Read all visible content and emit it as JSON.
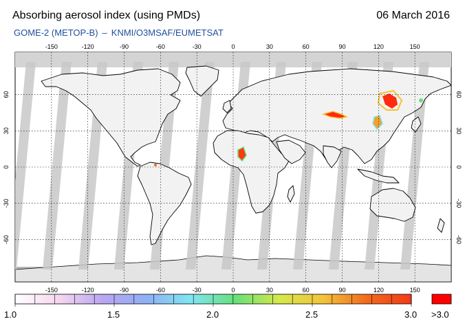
{
  "header": {
    "title": "Absorbing aerosol index (using PMDs)",
    "date": "06 March 2016",
    "instrument": "GOME-2 (METOP-B)",
    "separator": "–",
    "provider": "KNMI/O3MSAF/EUMETSAT"
  },
  "map": {
    "projection": "equirectangular",
    "lon_ticks": [
      "-150",
      "-120",
      "-90",
      "-60",
      "-30",
      "0",
      "30",
      "60",
      "90",
      "120",
      "150"
    ],
    "lat_ticks": [
      "60",
      "30",
      "0",
      "-30",
      "-60"
    ],
    "colors": {
      "ocean": "#ffffff",
      "no_data_swath_gap": "#c8c8c8",
      "polar_no_data": "#d4d4d4",
      "coastline": "#000000",
      "grid": "#000000"
    },
    "aerosol_hotspots": [
      {
        "region": "North-East China / Mongolia",
        "level": ">3.0"
      },
      {
        "region": "Central Asia / Kazakhstan",
        "level": ">3.0"
      },
      {
        "region": "Central Africa",
        "level": ">3.0"
      },
      {
        "region": "Eastern China",
        "level": "2.5-3.0"
      }
    ]
  },
  "colorbar": {
    "labels": [
      "1.0",
      "1.5",
      "2.0",
      "2.5",
      "3.0"
    ],
    "overflow_label": ">3.0",
    "stops": [
      "#ffffff",
      "#f6d6ef",
      "#b9a6f0",
      "#8fb0f5",
      "#7fe6f2",
      "#66e07a",
      "#d6e84a",
      "#f3c33a",
      "#f26a1c",
      "#f23a1a"
    ],
    "overflow_color": "#ff0000"
  }
}
